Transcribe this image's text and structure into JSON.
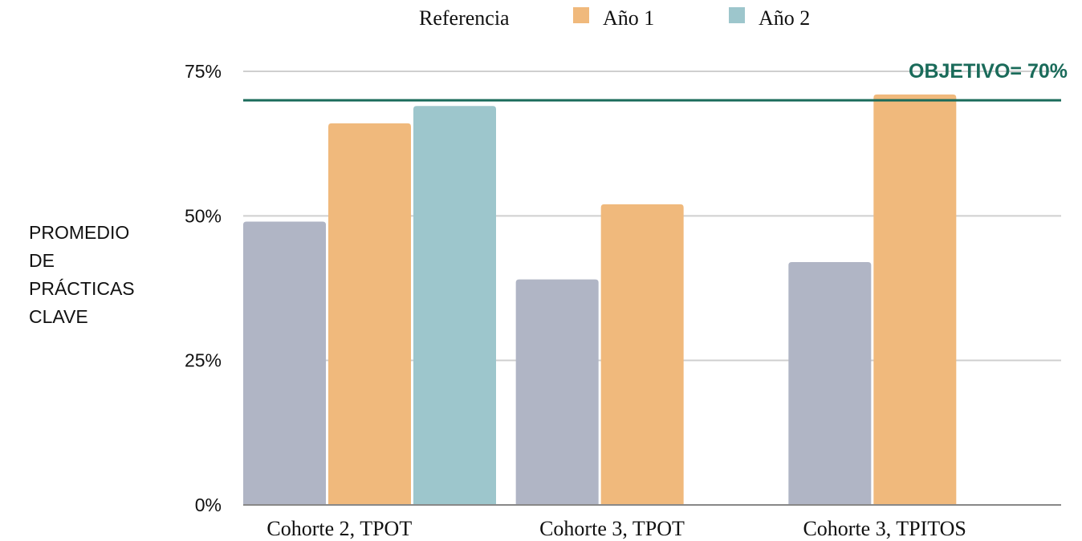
{
  "chart_data": {
    "type": "bar",
    "categories": [
      "Cohorte 2, TPOT",
      "Cohorte 3, TPOT",
      "Cohorte 3, TPITOS"
    ],
    "series": [
      {
        "name": "Referencia",
        "values": [
          49,
          39,
          42
        ],
        "color": "#b0b5c5"
      },
      {
        "name": "Año 1",
        "values": [
          66,
          52,
          71
        ],
        "color": "#f0b97c"
      },
      {
        "name": "Año 2",
        "values": [
          69,
          null,
          null
        ],
        "color": "#9dc6cc"
      }
    ],
    "ylabel": "PROMEDIO DE PRÁCTICAS CLAVE",
    "ylabel_lines": [
      "PROMEDIO",
      "DE",
      "PRÁCTICAS",
      "CLAVE"
    ],
    "ylim": [
      0,
      75
    ],
    "yticks": [
      0,
      25,
      50,
      75
    ],
    "ytick_labels": [
      "0%",
      "25%",
      "50%",
      "75%"
    ],
    "grid": true,
    "legend_position": "top-center",
    "target": {
      "value": 70,
      "label": "OBJETIVO= 70%",
      "color": "#1a6b5a"
    }
  }
}
